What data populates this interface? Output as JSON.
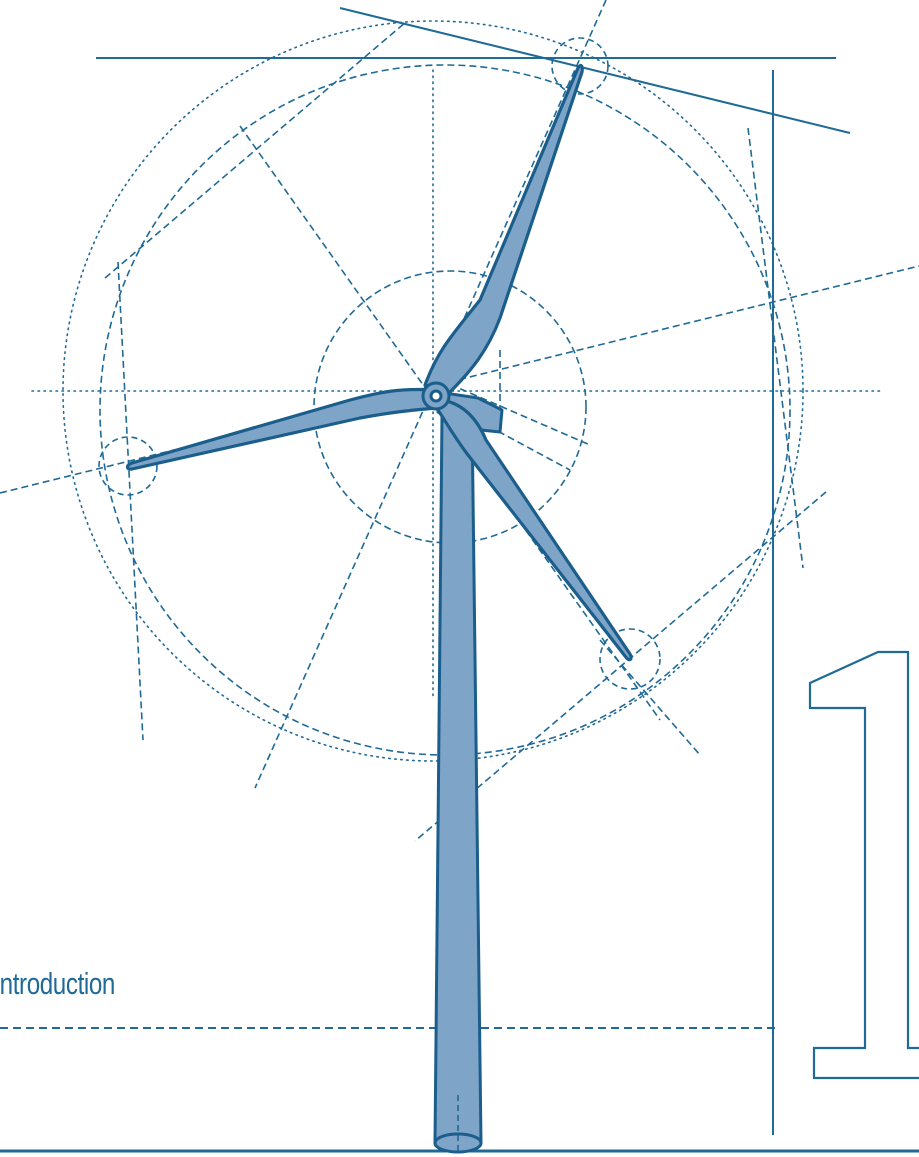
{
  "chapter": {
    "heading": "Introduction",
    "number": "1"
  },
  "colors": {
    "line": "#1f6a96",
    "blade_fill": "#7ea4c8",
    "blade_stroke": "#1b5e8c",
    "background": "#ffffff"
  },
  "illustration": {
    "subject": "wind-turbine",
    "blade_count": 3
  }
}
